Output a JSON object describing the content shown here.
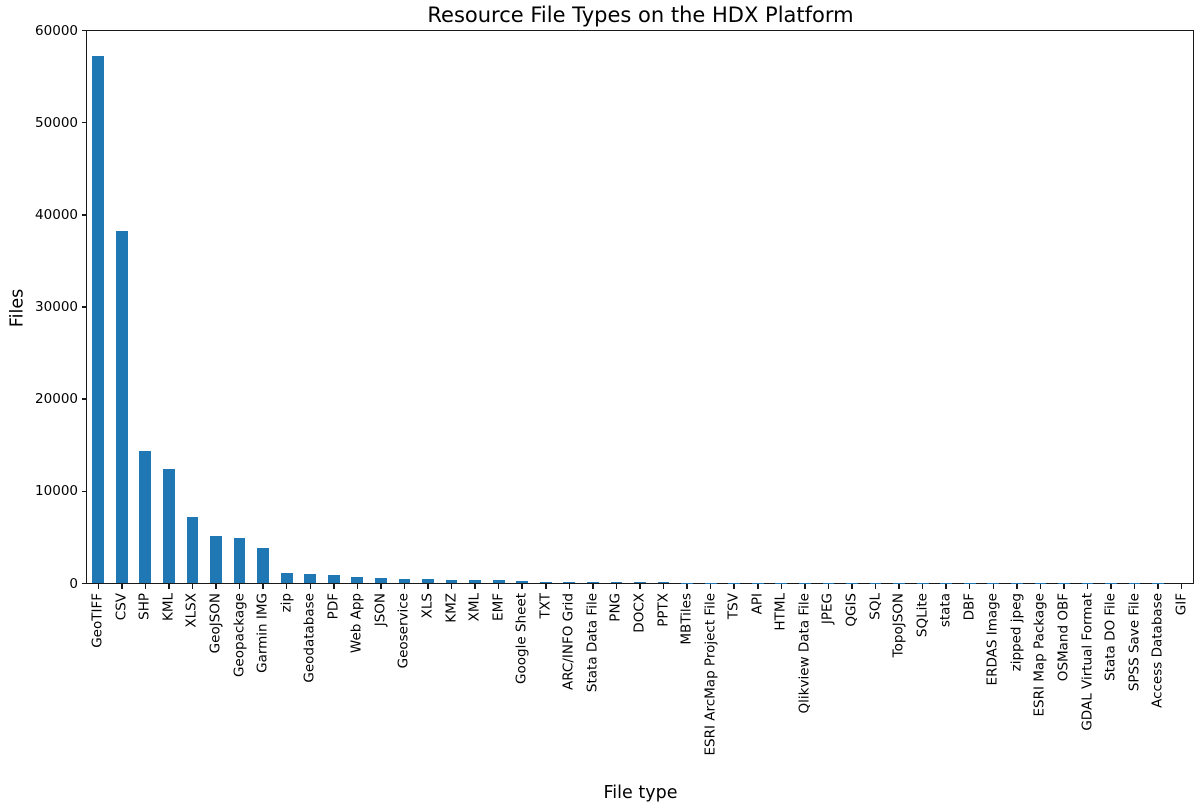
{
  "chart_data": {
    "type": "bar",
    "title": "Resource File Types on the HDX Platform",
    "xlabel": "File type",
    "ylabel": "Files",
    "bar_color": "#1f77b4",
    "ylim": [
      0,
      60000
    ],
    "yticks": [
      0,
      10000,
      20000,
      30000,
      40000,
      50000,
      60000
    ],
    "grid": false,
    "legend": "none",
    "x_tick_rotation_deg": 90,
    "categories": [
      "GeoTIFF",
      "CSV",
      "SHP",
      "KML",
      "XLSX",
      "GeoJSON",
      "Geopackage",
      "Garmin IMG",
      "zip",
      "Geodatabase",
      "PDF",
      "Web App",
      "JSON",
      "Geoservice",
      "XLS",
      "KMZ",
      "XML",
      "EMF",
      "Google Sheet",
      "TXT",
      "ARC/INFO Grid",
      "Stata Data File",
      "PNG",
      "DOCX",
      "PPTX",
      "MBTiles",
      "ESRI ArcMap Project File",
      "TSV",
      "API",
      "HTML",
      "Qlikview Data File",
      "JPEG",
      "QGIS",
      "SQL",
      "TopoJSON",
      "SQLite",
      "stata",
      "DBF",
      "ERDAS Image",
      "zipped jpeg",
      "ESRI Map Package",
      "OSMand OBF",
      "GDAL Virtual Format",
      "Stata DO File",
      "SPSS Save File",
      "Access Database",
      "GIF"
    ],
    "values": [
      57200,
      38300,
      14350,
      12400,
      7170,
      5150,
      4930,
      3800,
      1130,
      1050,
      870,
      660,
      580,
      500,
      490,
      420,
      390,
      330,
      230,
      200,
      190,
      170,
      150,
      140,
      110,
      90,
      80,
      70,
      65,
      60,
      55,
      50,
      45,
      40,
      38,
      35,
      32,
      30,
      28,
      25,
      22,
      20,
      18,
      15,
      12,
      10,
      8
    ]
  }
}
